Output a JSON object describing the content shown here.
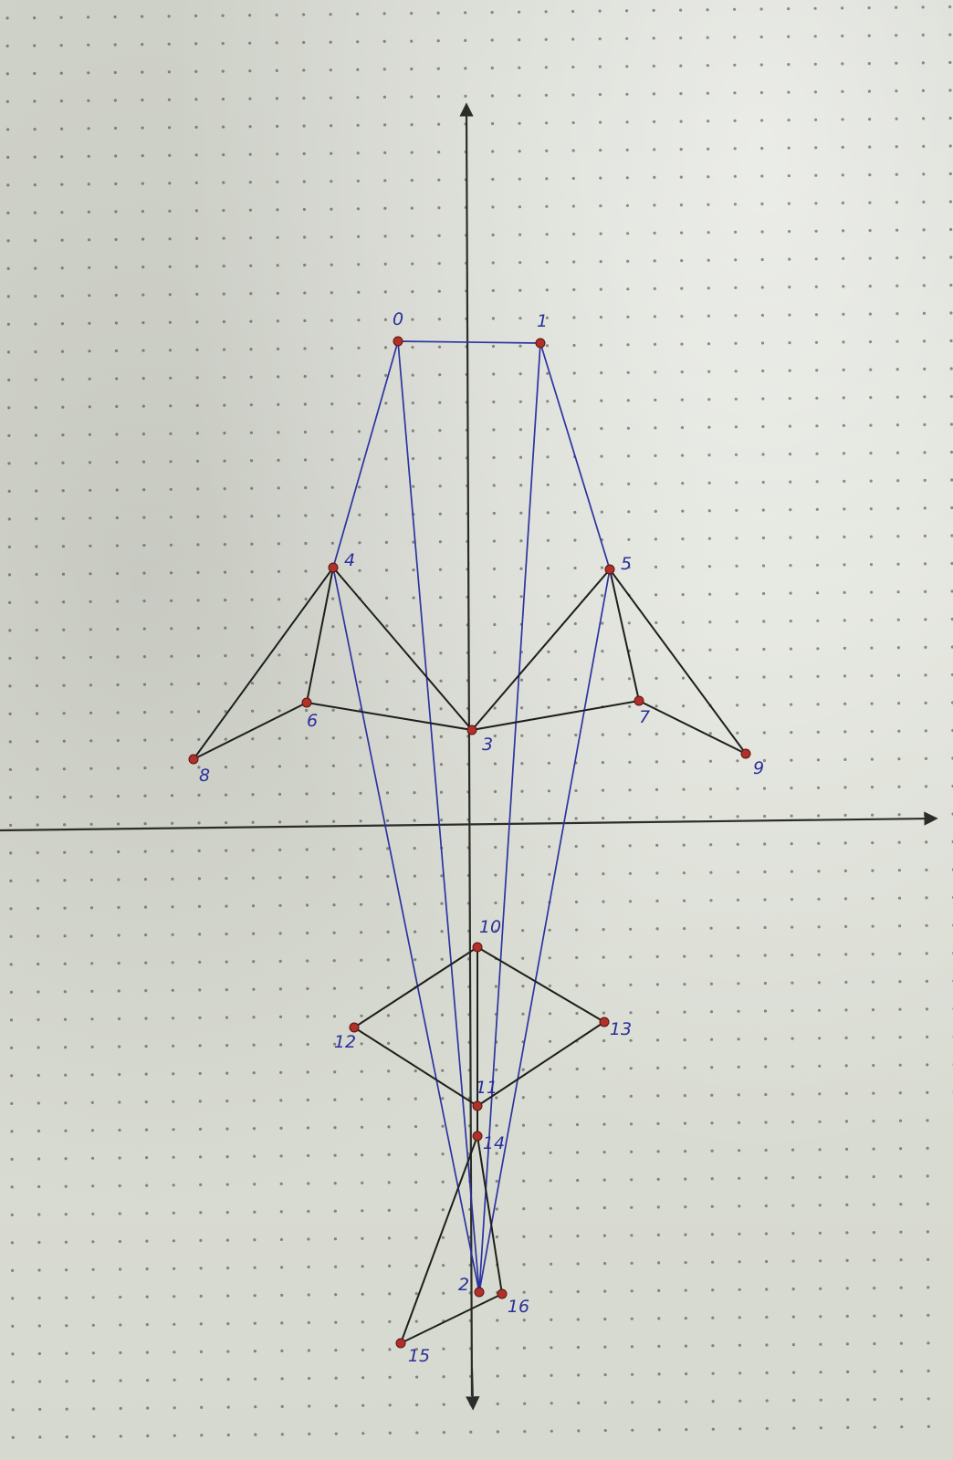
{
  "diagram": {
    "colors": {
      "dot_grid": "#3a3d38",
      "axis": "#2b2d2a",
      "black_edge": "#1e1f1d",
      "blue_edge": "#2c34a0",
      "node": "#b0302a",
      "label": "#2a2f9a"
    },
    "nodes": [
      {
        "id": "n0",
        "label": "0"
      },
      {
        "id": "n1",
        "label": "1"
      },
      {
        "id": "n2",
        "label": "2"
      },
      {
        "id": "n3",
        "label": "3"
      },
      {
        "id": "n4",
        "label": "4"
      },
      {
        "id": "n5",
        "label": "5"
      },
      {
        "id": "n6",
        "label": "6"
      },
      {
        "id": "n7",
        "label": "7"
      },
      {
        "id": "n8",
        "label": "8"
      },
      {
        "id": "n9",
        "label": "9"
      },
      {
        "id": "n10",
        "label": "10"
      },
      {
        "id": "n11",
        "label": "11"
      },
      {
        "id": "n12",
        "label": "12"
      },
      {
        "id": "n13",
        "label": "13"
      },
      {
        "id": "n14",
        "label": "14"
      },
      {
        "id": "n15",
        "label": "15"
      },
      {
        "id": "n16",
        "label": "16"
      }
    ],
    "edges": [
      {
        "from": "n0",
        "to": "n1",
        "color": "blue"
      },
      {
        "from": "n0",
        "to": "n4",
        "color": "blue"
      },
      {
        "from": "n0",
        "to": "n2",
        "color": "blue"
      },
      {
        "from": "n1",
        "to": "n5",
        "color": "blue"
      },
      {
        "from": "n1",
        "to": "n2",
        "color": "blue"
      },
      {
        "from": "n4",
        "to": "n2",
        "color": "blue"
      },
      {
        "from": "n5",
        "to": "n2",
        "color": "blue"
      },
      {
        "from": "n4",
        "to": "n8",
        "color": "black"
      },
      {
        "from": "n4",
        "to": "n6",
        "color": "black"
      },
      {
        "from": "n4",
        "to": "n3",
        "color": "black"
      },
      {
        "from": "n6",
        "to": "n8",
        "color": "black"
      },
      {
        "from": "n6",
        "to": "n3",
        "color": "black"
      },
      {
        "from": "n5",
        "to": "n3",
        "color": "black"
      },
      {
        "from": "n5",
        "to": "n7",
        "color": "black"
      },
      {
        "from": "n5",
        "to": "n9",
        "color": "black"
      },
      {
        "from": "n3",
        "to": "n7",
        "color": "black"
      },
      {
        "from": "n7",
        "to": "n9",
        "color": "black"
      },
      {
        "from": "n10",
        "to": "n12",
        "color": "black"
      },
      {
        "from": "n10",
        "to": "n13",
        "color": "black"
      },
      {
        "from": "n10",
        "to": "n11",
        "color": "black"
      },
      {
        "from": "n12",
        "to": "n11",
        "color": "black"
      },
      {
        "from": "n13",
        "to": "n11",
        "color": "black"
      },
      {
        "from": "n11",
        "to": "n14",
        "color": "black"
      },
      {
        "from": "n14",
        "to": "n15",
        "color": "black"
      },
      {
        "from": "n14",
        "to": "n16",
        "color": "black"
      },
      {
        "from": "n15",
        "to": "n16",
        "color": "black"
      }
    ]
  }
}
